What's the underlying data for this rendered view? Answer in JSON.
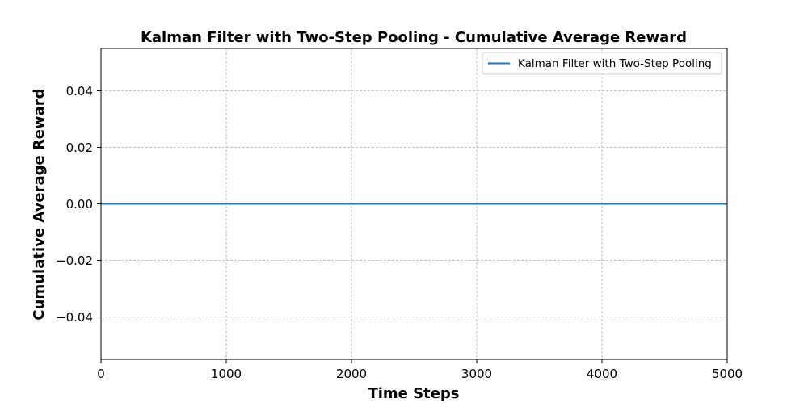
{
  "chart_data": {
    "type": "line",
    "title": "Kalman Filter with Two-Step Pooling - Cumulative Average Reward",
    "xlabel": "Time Steps",
    "ylabel": "Cumulative Average Reward",
    "xlim": [
      0,
      5000
    ],
    "ylim": [
      -0.055,
      0.055
    ],
    "xticks": [
      0,
      1000,
      2000,
      3000,
      4000,
      5000
    ],
    "xtick_labels": [
      "0",
      "1000",
      "2000",
      "3000",
      "4000",
      "5000"
    ],
    "yticks": [
      -0.04,
      -0.02,
      0.0,
      0.02,
      0.04
    ],
    "ytick_labels": [
      "−0.04",
      "−0.02",
      "0.00",
      "0.02",
      "0.04"
    ],
    "grid": true,
    "legend": {
      "position": "top-right",
      "entries": [
        "Kalman Filter with Two-Step Pooling"
      ]
    },
    "series": [
      {
        "name": "Kalman Filter with Two-Step Pooling",
        "color": "#1f77b4",
        "x": [
          0,
          5000
        ],
        "y": [
          0.0,
          0.0
        ]
      }
    ]
  }
}
